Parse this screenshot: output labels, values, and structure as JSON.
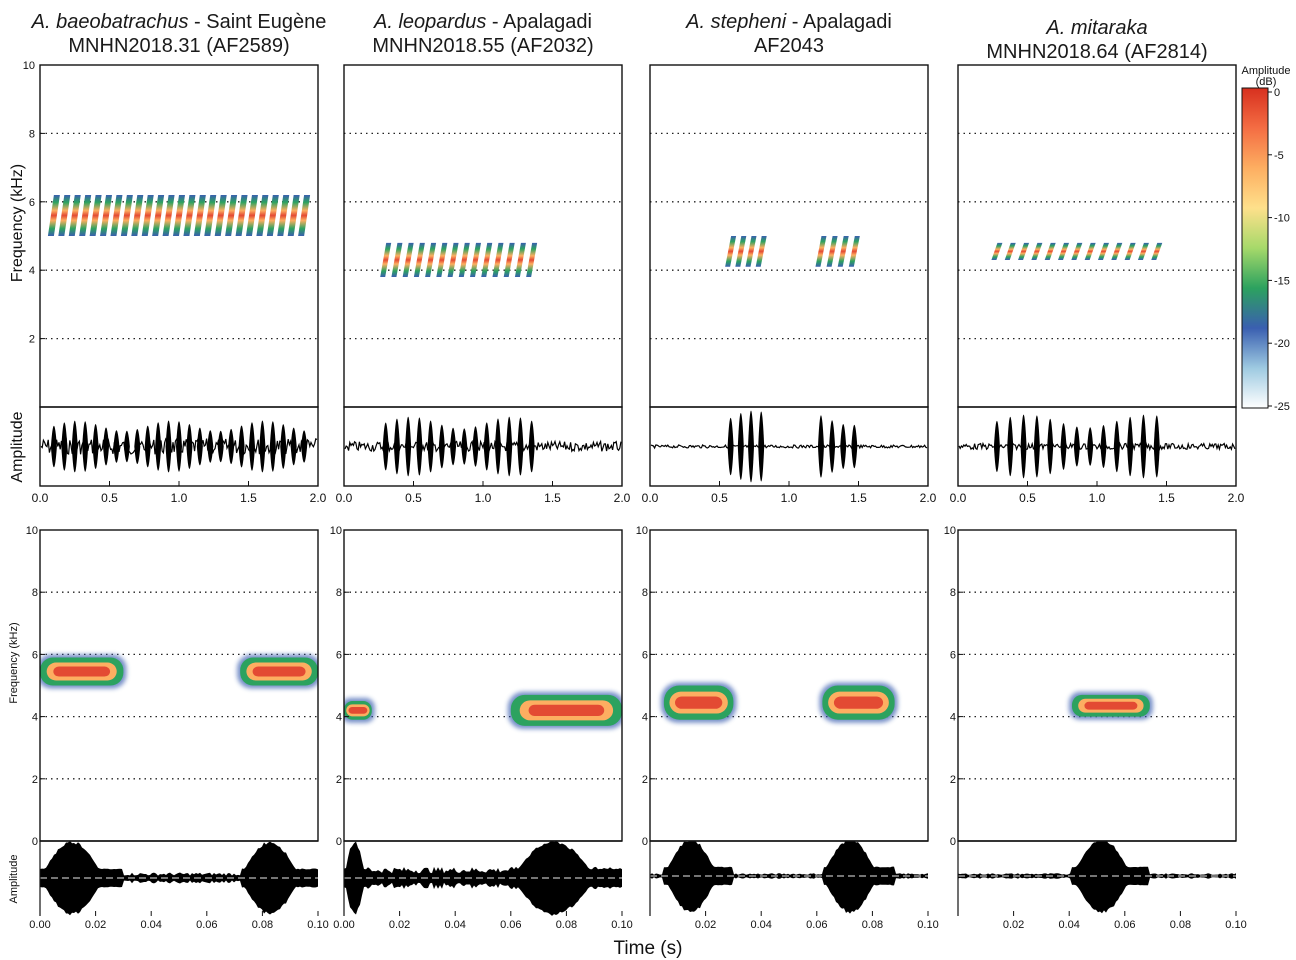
{
  "figure": {
    "panels_top_titles": [
      {
        "species": "A. baeobatrachus",
        "locality": " - Saint Eugène",
        "specimen": "MNHN2018.31 (AF2589)"
      },
      {
        "species": "A. leopardus",
        "locality": " - Apalagadi",
        "specimen": "MNHN2018.55 (AF2032)"
      },
      {
        "species": "A. stepheni",
        "locality": " - Apalagadi",
        "specimen": "AF2043"
      },
      {
        "species": "A. mitaraka",
        "locality": "",
        "specimen": "MNHN2018.64 (AF2814)"
      }
    ],
    "ylabel_frequency": "Frequency (kHz)",
    "ylabel_amplitude": "Amplitude",
    "xlabel": "Time (s)",
    "colorbar": {
      "title_line1": "Amplitude",
      "title_line2": "(dB)",
      "ticks": [
        "0",
        "-5",
        "-10",
        "-15",
        "-20",
        "-25"
      ],
      "colors": [
        "#d7301f",
        "#f46d43",
        "#fdae61",
        "#fee08b",
        "#a6d96a",
        "#2ca25f",
        "#3a5fb0",
        "#9ecae1",
        "#ffffff"
      ]
    }
  },
  "chart_data": [
    {
      "type": "heatmap",
      "title": "A. baeobatrachus - Saint Eugène MNHN2018.31 (AF2589)",
      "xlabel": "Time (s)",
      "ylabel": "Frequency (kHz)",
      "xlim": [
        0,
        2.0
      ],
      "ylim": [
        0,
        10
      ],
      "xticks": [
        "0.0",
        "0.5",
        "1.0",
        "1.5",
        "2.0"
      ],
      "yticks": [
        "2",
        "4",
        "6",
        "8",
        "10"
      ],
      "grid_y": [
        2,
        4,
        6,
        8
      ],
      "call": {
        "pulse_count": 25,
        "start_s": 0.1,
        "end_s": 1.9,
        "freq_low_khz": 5.0,
        "freq_high_khz": 6.2,
        "dominant_khz": 5.6
      }
    },
    {
      "type": "heatmap",
      "title": "A. leopardus - Apalagadi MNHN2018.55 (AF2032)",
      "xlabel": "Time (s)",
      "ylabel": "Frequency (kHz)",
      "xlim": [
        0,
        2.0
      ],
      "ylim": [
        0,
        10
      ],
      "xticks": [
        "0.0",
        "0.5",
        "1.0",
        "1.5",
        "2.0"
      ],
      "yticks": [],
      "grid_y": [
        2,
        4,
        6,
        8
      ],
      "call": {
        "pulse_count": 14,
        "start_s": 0.3,
        "end_s": 1.35,
        "freq_low_khz": 3.8,
        "freq_high_khz": 4.8,
        "dominant_khz": 4.3
      }
    },
    {
      "type": "heatmap",
      "title": "A. stepheni - Apalagadi AF2043",
      "xlabel": "Time (s)",
      "ylabel": "Frequency (kHz)",
      "xlim": [
        0,
        2.0
      ],
      "ylim": [
        0,
        10
      ],
      "xticks": [
        "0.0",
        "0.5",
        "1.0",
        "1.5",
        "2.0"
      ],
      "yticks": [],
      "grid_y": [
        2,
        4,
        6,
        8
      ],
      "call": {
        "pulse_groups": [
          {
            "pulse_count": 4,
            "start_s": 0.58,
            "end_s": 0.8
          },
          {
            "pulse_count": 4,
            "start_s": 1.23,
            "end_s": 1.47
          }
        ],
        "freq_low_khz": 4.1,
        "freq_high_khz": 5.0,
        "dominant_khz": 4.5
      }
    },
    {
      "type": "heatmap",
      "title": "A. mitaraka MNHN2018.64 (AF2814)",
      "xlabel": "Time (s)",
      "ylabel": "Frequency (kHz)",
      "xlim": [
        0,
        2.0
      ],
      "ylim": [
        0,
        10
      ],
      "xticks": [
        "0.0",
        "0.5",
        "1.0",
        "1.5",
        "2.0"
      ],
      "yticks": [],
      "grid_y": [
        2,
        4,
        6,
        8
      ],
      "call": {
        "pulse_count": 13,
        "start_s": 0.28,
        "end_s": 1.43,
        "freq_low_khz": 4.3,
        "freq_high_khz": 4.8,
        "dominant_khz": 4.5
      }
    },
    {
      "type": "heatmap",
      "title": "",
      "xlabel": "Time (s)",
      "ylabel": "Frequency (kHz)",
      "xlim": [
        0,
        0.1
      ],
      "ylim": [
        0,
        10
      ],
      "xticks": [
        "0.00",
        "0.02",
        "0.04",
        "0.06",
        "0.08",
        "0.10"
      ],
      "yticks": [
        "0",
        "2",
        "4",
        "6",
        "8",
        "10"
      ],
      "grid_y": [
        2,
        4,
        6,
        8
      ],
      "notes": [
        {
          "start_s": 0.0,
          "end_s": 0.03,
          "freq_low_khz": 5.0,
          "freq_high_khz": 5.9,
          "dominant_khz": 5.4
        },
        {
          "start_s": 0.072,
          "end_s": 0.1,
          "freq_low_khz": 5.0,
          "freq_high_khz": 5.9,
          "dominant_khz": 5.4
        }
      ]
    },
    {
      "type": "heatmap",
      "title": "",
      "xlabel": "Time (s)",
      "ylabel": "Frequency (kHz)",
      "xlim": [
        0,
        0.1
      ],
      "ylim": [
        0,
        10
      ],
      "xticks": [
        "0.00",
        "0.02",
        "0.04",
        "0.06",
        "0.08",
        "0.10"
      ],
      "yticks": [
        "0",
        "2",
        "4",
        "6",
        "8",
        "10"
      ],
      "grid_y": [
        2,
        4,
        6,
        8
      ],
      "notes": [
        {
          "start_s": 0.0,
          "end_s": 0.01,
          "freq_low_khz": 3.9,
          "freq_high_khz": 4.5,
          "dominant_khz": 4.2
        },
        {
          "start_s": 0.06,
          "end_s": 0.1,
          "freq_low_khz": 3.7,
          "freq_high_khz": 4.7,
          "dominant_khz": 4.1
        }
      ]
    },
    {
      "type": "heatmap",
      "title": "",
      "xlabel": "Time (s)",
      "ylabel": "Frequency (kHz)",
      "xlim": [
        0,
        0.1
      ],
      "ylim": [
        0,
        10
      ],
      "xticks": [
        "0.00",
        "0.02",
        "0.04",
        "0.06",
        "0.08",
        "0.10"
      ],
      "yticks": [
        "0",
        "2",
        "4",
        "6",
        "8",
        "10"
      ],
      "grid_y": [
        2,
        4,
        6,
        8
      ],
      "notes": [
        {
          "start_s": 0.005,
          "end_s": 0.03,
          "freq_low_khz": 3.9,
          "freq_high_khz": 5.0,
          "dominant_khz": 4.4
        },
        {
          "start_s": 0.062,
          "end_s": 0.088,
          "freq_low_khz": 3.9,
          "freq_high_khz": 5.0,
          "dominant_khz": 4.4
        }
      ]
    },
    {
      "type": "heatmap",
      "title": "",
      "xlabel": "Time (s)",
      "ylabel": "Frequency (kHz)",
      "xlim": [
        0,
        0.1
      ],
      "ylim": [
        0,
        10
      ],
      "xticks": [
        "0.00",
        "0.02",
        "0.04",
        "0.06",
        "0.08",
        "0.10"
      ],
      "yticks": [
        "0",
        "2",
        "4",
        "6",
        "8",
        "10"
      ],
      "grid_y": [
        2,
        4,
        6,
        8
      ],
      "notes": [
        {
          "start_s": 0.041,
          "end_s": 0.069,
          "freq_low_khz": 4.0,
          "freq_high_khz": 4.7,
          "dominant_khz": 4.4
        }
      ]
    }
  ]
}
